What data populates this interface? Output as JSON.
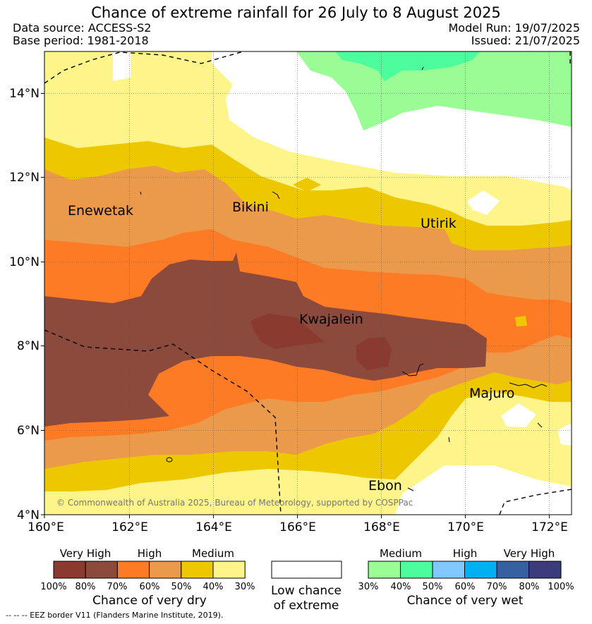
{
  "header": {
    "title": "Chance of extreme rainfall for 26 July to 8 August 2025",
    "data_source": "Data source: ACCESS-S2",
    "base_period": "Base period: 1981-2018",
    "model_run": "Model Run: 19/07/2025",
    "issued": "Issued: 21/07/2025"
  },
  "map": {
    "lon_labels": [
      "160°E",
      "162°E",
      "164°E",
      "166°E",
      "168°E",
      "170°E",
      "172°E"
    ],
    "lat_labels": [
      "14°N",
      "12°N",
      "10°N",
      "8°N",
      "6°N",
      "4°N"
    ],
    "places": [
      "Enewetak",
      "Bikini",
      "Utirik",
      "Kwajalein",
      "Majuro",
      "Ebon"
    ],
    "copyright": "© Commonwealth of Australia 2025, Bureau of Meteorology, supported by COSPPac"
  },
  "legend": {
    "dry": {
      "headers": [
        "Very High",
        "High",
        "Medium"
      ],
      "colors": [
        "#8b3a30",
        "#8b4a3c",
        "#fe7b25",
        "#eb9a4c",
        "#edc700",
        "#fdf48a"
      ],
      "ticks": [
        "100%",
        "80%",
        "70%",
        "60%",
        "50%",
        "40%",
        "30%"
      ],
      "caption": "Chance of very dry"
    },
    "low": {
      "caption_line1": "Low chance",
      "caption_line2": "of extreme",
      "color": "#ffffff"
    },
    "wet": {
      "headers": [
        "Medium",
        "High",
        "Very High"
      ],
      "colors": [
        "#99fc94",
        "#4dfc9c",
        "#80c8ff",
        "#00b0f0",
        "#3760a0",
        "#3c3c7c"
      ],
      "ticks": [
        "30%",
        "40%",
        "50%",
        "60%",
        "70%",
        "80%",
        "100%"
      ],
      "caption": "Chance of very wet"
    }
  },
  "footer": {
    "eez_note": "--  --  -- EEZ border V11 (Flanders Marine Institute, 2019)."
  },
  "colors": {
    "very_dry_80": "#8b4a3c",
    "very_dry_100": "#8b3a30",
    "high_70": "#fe7b25",
    "high_60": "#eb9a4c",
    "medium_50": "#edc700",
    "medium_40": "#fdf48a",
    "wet_30": "#99fc94",
    "wet_40": "#4dfc9c"
  }
}
